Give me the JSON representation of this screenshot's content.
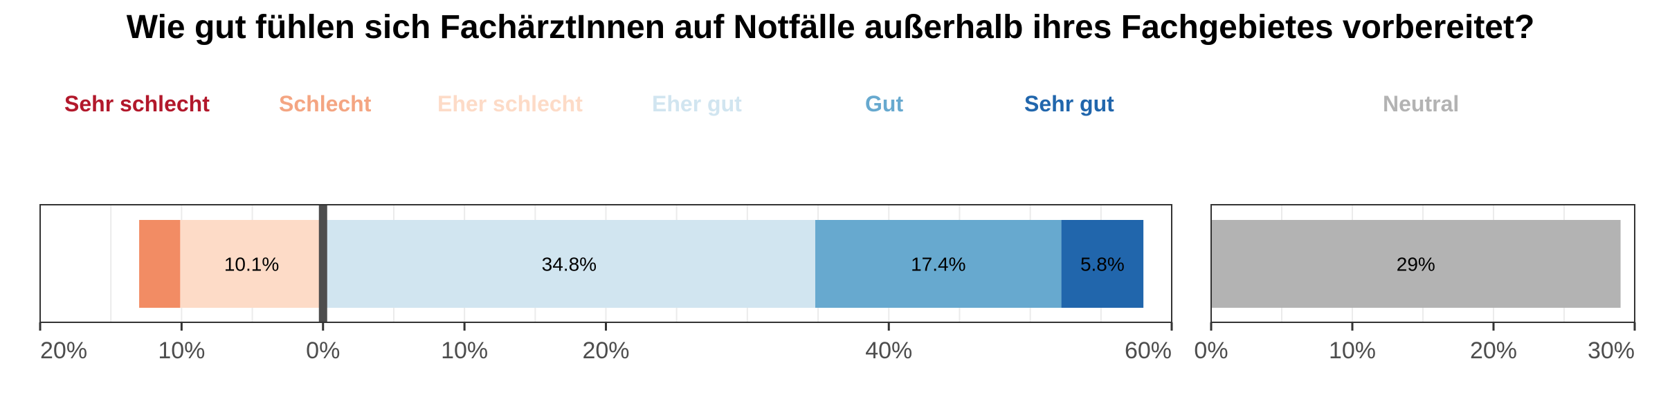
{
  "chart_data": {
    "type": "bar",
    "orientation": "horizontal",
    "stacked": true,
    "diverging": true,
    "title": "Wie gut fühlen sich FachärztInnen auf Notfälle außerhalb ihres Fachgebietes vorbereitet?",
    "legend_position": "top",
    "grid": true,
    "categories": [
      ""
    ],
    "series": [
      {
        "name": "Sehr schlecht",
        "values": [
          0
        ],
        "color": "#b2182b"
      },
      {
        "name": "Schlecht",
        "values": [
          2.9
        ],
        "color": "#f4a582",
        "bar_color": "#f28c64"
      },
      {
        "name": "Eher schlecht",
        "values": [
          10.1
        ],
        "color": "#fddbc7",
        "data_label": "10.1%"
      },
      {
        "name": "Eher gut",
        "values": [
          34.8
        ],
        "color": "#d1e5f0",
        "data_label": "34.8%"
      },
      {
        "name": "Gut",
        "values": [
          17.4
        ],
        "color": "#67a9cf",
        "data_label": "17.4%"
      },
      {
        "name": "Sehr gut",
        "values": [
          5.8
        ],
        "color": "#2166ac",
        "data_label": "5.8%"
      }
    ],
    "neutral": {
      "name": "Neutral",
      "value": 29,
      "color": "#b3b3b3",
      "data_label": "29%"
    },
    "main_panel": {
      "xlim": [
        -20,
        60
      ],
      "ticks": [
        {
          "value": -20,
          "label": "20%"
        },
        {
          "value": -10,
          "label": "10%"
        },
        {
          "value": 0,
          "label": "0%"
        },
        {
          "value": 10,
          "label": "10%"
        },
        {
          "value": 20,
          "label": "20%"
        },
        {
          "value": 40,
          "label": "40%"
        },
        {
          "value": 60,
          "label": "60%"
        }
      ],
      "gridlines": [
        -15,
        -10,
        -5,
        0,
        5,
        10,
        15,
        20,
        25,
        30,
        35,
        40,
        45,
        50,
        55
      ]
    },
    "neutral_panel": {
      "xlim": [
        0,
        30
      ],
      "ticks": [
        {
          "value": 0,
          "label": "0%"
        },
        {
          "value": 10,
          "label": "10%"
        },
        {
          "value": 20,
          "label": "20%"
        },
        {
          "value": 30,
          "label": "30%"
        }
      ],
      "gridlines": [
        5,
        10,
        15,
        20,
        25
      ]
    }
  }
}
